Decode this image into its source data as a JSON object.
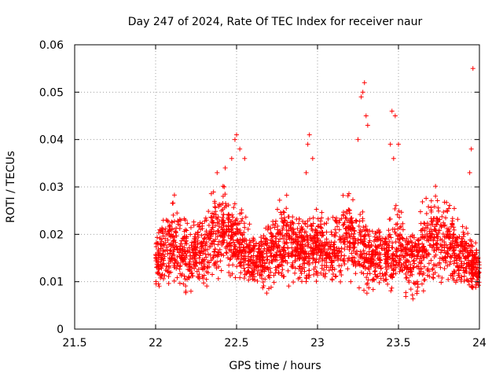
{
  "chart_data": {
    "type": "scatter",
    "title": "Day 247 of 2024, Rate Of TEC Index for receiver naur",
    "xlabel": "GPS time / hours",
    "ylabel": "ROTI / TECUs",
    "xlim": [
      21.5,
      24
    ],
    "ylim": [
      0,
      0.06
    ],
    "x_ticks": [
      "21.5",
      "22",
      "22.5",
      "23",
      "23.5",
      "24"
    ],
    "x_tick_values": [
      21.5,
      22,
      22.5,
      23,
      23.5,
      24
    ],
    "y_ticks": [
      "0",
      "0.01",
      "0.02",
      "0.03",
      "0.04",
      "0.05",
      "0.06"
    ],
    "y_tick_values": [
      0,
      0.01,
      0.02,
      0.03,
      0.04,
      0.05,
      0.06
    ],
    "grid": true,
    "marker": "+",
    "series": [
      {
        "name": "ROTI",
        "color": "#ff0000",
        "x_range": [
          22.0,
          24.0
        ],
        "envelope_x": [
          22.0,
          22.1,
          22.2,
          22.3,
          22.4,
          22.5,
          22.6,
          22.7,
          22.8,
          22.9,
          23.0,
          23.1,
          23.2,
          23.3,
          23.4,
          23.5,
          23.6,
          23.7,
          23.8,
          23.9,
          24.0
        ],
        "envelope_low": [
          0.007,
          0.006,
          0.005,
          0.006,
          0.008,
          0.008,
          0.007,
          0.007,
          0.008,
          0.008,
          0.007,
          0.007,
          0.007,
          0.006,
          0.007,
          0.006,
          0.005,
          0.006,
          0.006,
          0.006,
          0.006
        ],
        "envelope_high": [
          0.022,
          0.029,
          0.025,
          0.026,
          0.033,
          0.028,
          0.022,
          0.024,
          0.029,
          0.024,
          0.027,
          0.024,
          0.033,
          0.025,
          0.022,
          0.027,
          0.022,
          0.032,
          0.03,
          0.024,
          0.017
        ],
        "spikes": [
          [
            22.38,
            0.033
          ],
          [
            22.43,
            0.034
          ],
          [
            22.47,
            0.036
          ],
          [
            22.49,
            0.04
          ],
          [
            22.5,
            0.041
          ],
          [
            22.52,
            0.038
          ],
          [
            22.55,
            0.036
          ],
          [
            22.93,
            0.033
          ],
          [
            22.94,
            0.039
          ],
          [
            22.95,
            0.041
          ],
          [
            22.97,
            0.036
          ],
          [
            23.25,
            0.04
          ],
          [
            23.27,
            0.049
          ],
          [
            23.28,
            0.05
          ],
          [
            23.29,
            0.052
          ],
          [
            23.3,
            0.045
          ],
          [
            23.31,
            0.043
          ],
          [
            23.45,
            0.039
          ],
          [
            23.46,
            0.046
          ],
          [
            23.48,
            0.045
          ],
          [
            23.5,
            0.039
          ],
          [
            23.47,
            0.036
          ],
          [
            23.94,
            0.033
          ],
          [
            23.95,
            0.038
          ],
          [
            23.96,
            0.055
          ]
        ]
      }
    ]
  }
}
